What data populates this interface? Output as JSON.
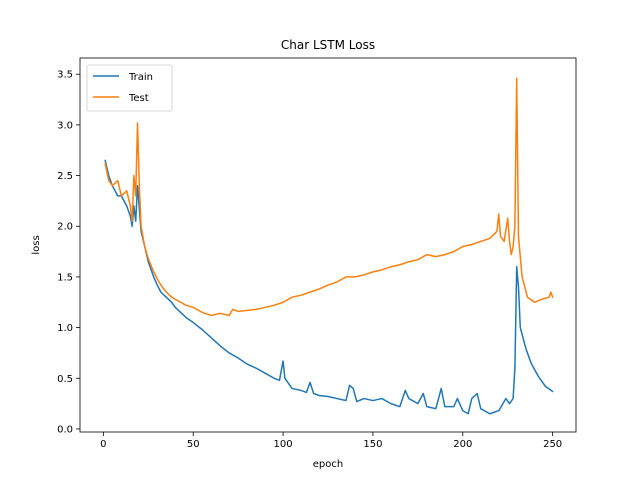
{
  "chart_data": {
    "type": "line",
    "title": "Char LSTM Loss",
    "xlabel": "epoch",
    "ylabel": "loss",
    "xlim": [
      -13,
      263
    ],
    "ylim": [
      -0.03,
      3.66
    ],
    "xticks": [
      0,
      50,
      100,
      150,
      200,
      250
    ],
    "yticks": [
      0.0,
      0.5,
      1.0,
      1.5,
      2.0,
      2.5,
      3.0,
      3.5
    ],
    "legend_position": "top-left",
    "grid": false,
    "series": [
      {
        "name": "Train",
        "color": "#1f77b4",
        "points": [
          [
            1,
            2.65
          ],
          [
            3,
            2.5
          ],
          [
            5,
            2.4
          ],
          [
            8,
            2.3
          ],
          [
            10,
            2.3
          ],
          [
            13,
            2.2
          ],
          [
            15,
            2.1
          ],
          [
            16,
            2.0
          ],
          [
            17,
            2.2
          ],
          [
            18,
            2.05
          ],
          [
            19,
            2.4
          ],
          [
            21,
            1.95
          ],
          [
            23,
            1.8
          ],
          [
            25,
            1.65
          ],
          [
            28,
            1.5
          ],
          [
            30,
            1.42
          ],
          [
            32,
            1.35
          ],
          [
            35,
            1.3
          ],
          [
            38,
            1.25
          ],
          [
            40,
            1.2
          ],
          [
            43,
            1.15
          ],
          [
            46,
            1.1
          ],
          [
            50,
            1.05
          ],
          [
            55,
            0.98
          ],
          [
            60,
            0.9
          ],
          [
            65,
            0.82
          ],
          [
            70,
            0.75
          ],
          [
            75,
            0.7
          ],
          [
            80,
            0.64
          ],
          [
            85,
            0.6
          ],
          [
            90,
            0.55
          ],
          [
            95,
            0.5
          ],
          [
            98,
            0.48
          ],
          [
            100,
            0.67
          ],
          [
            101,
            0.5
          ],
          [
            105,
            0.4
          ],
          [
            110,
            0.38
          ],
          [
            113,
            0.36
          ],
          [
            115,
            0.46
          ],
          [
            117,
            0.35
          ],
          [
            120,
            0.33
          ],
          [
            125,
            0.32
          ],
          [
            130,
            0.3
          ],
          [
            135,
            0.28
          ],
          [
            137,
            0.43
          ],
          [
            139,
            0.4
          ],
          [
            141,
            0.27
          ],
          [
            145,
            0.3
          ],
          [
            150,
            0.28
          ],
          [
            155,
            0.3
          ],
          [
            160,
            0.25
          ],
          [
            165,
            0.22
          ],
          [
            168,
            0.38
          ],
          [
            170,
            0.3
          ],
          [
            175,
            0.25
          ],
          [
            178,
            0.35
          ],
          [
            180,
            0.22
          ],
          [
            185,
            0.2
          ],
          [
            188,
            0.4
          ],
          [
            190,
            0.22
          ],
          [
            195,
            0.22
          ],
          [
            197,
            0.3
          ],
          [
            200,
            0.18
          ],
          [
            203,
            0.15
          ],
          [
            205,
            0.3
          ],
          [
            208,
            0.35
          ],
          [
            210,
            0.2
          ],
          [
            215,
            0.15
          ],
          [
            220,
            0.18
          ],
          [
            224,
            0.3
          ],
          [
            226,
            0.25
          ],
          [
            228,
            0.3
          ],
          [
            229,
            0.6
          ],
          [
            230,
            1.6
          ],
          [
            231,
            1.4
          ],
          [
            232,
            1.0
          ],
          [
            235,
            0.8
          ],
          [
            238,
            0.65
          ],
          [
            242,
            0.52
          ],
          [
            246,
            0.42
          ],
          [
            250,
            0.37
          ]
        ]
      },
      {
        "name": "Test",
        "color": "#ff7f0e",
        "points": [
          [
            1,
            2.62
          ],
          [
            3,
            2.45
          ],
          [
            5,
            2.4
          ],
          [
            8,
            2.45
          ],
          [
            10,
            2.3
          ],
          [
            13,
            2.35
          ],
          [
            15,
            2.2
          ],
          [
            16,
            2.05
          ],
          [
            17,
            2.5
          ],
          [
            18,
            2.3
          ],
          [
            19,
            3.02
          ],
          [
            20,
            2.4
          ],
          [
            21,
            2.0
          ],
          [
            23,
            1.8
          ],
          [
            25,
            1.68
          ],
          [
            28,
            1.55
          ],
          [
            30,
            1.48
          ],
          [
            32,
            1.42
          ],
          [
            35,
            1.35
          ],
          [
            38,
            1.3
          ],
          [
            40,
            1.28
          ],
          [
            43,
            1.25
          ],
          [
            46,
            1.22
          ],
          [
            50,
            1.2
          ],
          [
            55,
            1.15
          ],
          [
            60,
            1.12
          ],
          [
            65,
            1.14
          ],
          [
            70,
            1.12
          ],
          [
            72,
            1.18
          ],
          [
            75,
            1.16
          ],
          [
            80,
            1.17
          ],
          [
            85,
            1.18
          ],
          [
            90,
            1.2
          ],
          [
            95,
            1.22
          ],
          [
            100,
            1.25
          ],
          [
            105,
            1.3
          ],
          [
            110,
            1.32
          ],
          [
            115,
            1.35
          ],
          [
            120,
            1.38
          ],
          [
            125,
            1.42
          ],
          [
            130,
            1.45
          ],
          [
            135,
            1.5
          ],
          [
            140,
            1.5
          ],
          [
            145,
            1.52
          ],
          [
            150,
            1.55
          ],
          [
            155,
            1.57
          ],
          [
            160,
            1.6
          ],
          [
            165,
            1.62
          ],
          [
            170,
            1.65
          ],
          [
            175,
            1.67
          ],
          [
            180,
            1.72
          ],
          [
            185,
            1.7
          ],
          [
            190,
            1.72
          ],
          [
            195,
            1.75
          ],
          [
            200,
            1.8
          ],
          [
            205,
            1.82
          ],
          [
            210,
            1.85
          ],
          [
            215,
            1.88
          ],
          [
            219,
            1.95
          ],
          [
            220,
            2.12
          ],
          [
            221,
            1.9
          ],
          [
            223,
            1.85
          ],
          [
            225,
            2.08
          ],
          [
            226,
            1.85
          ],
          [
            227,
            1.72
          ],
          [
            228,
            1.8
          ],
          [
            229,
            2.0
          ],
          [
            230,
            3.46
          ],
          [
            231,
            1.9
          ],
          [
            233,
            1.5
          ],
          [
            236,
            1.3
          ],
          [
            240,
            1.25
          ],
          [
            244,
            1.28
          ],
          [
            248,
            1.3
          ],
          [
            249,
            1.35
          ],
          [
            250,
            1.3
          ]
        ]
      }
    ]
  }
}
